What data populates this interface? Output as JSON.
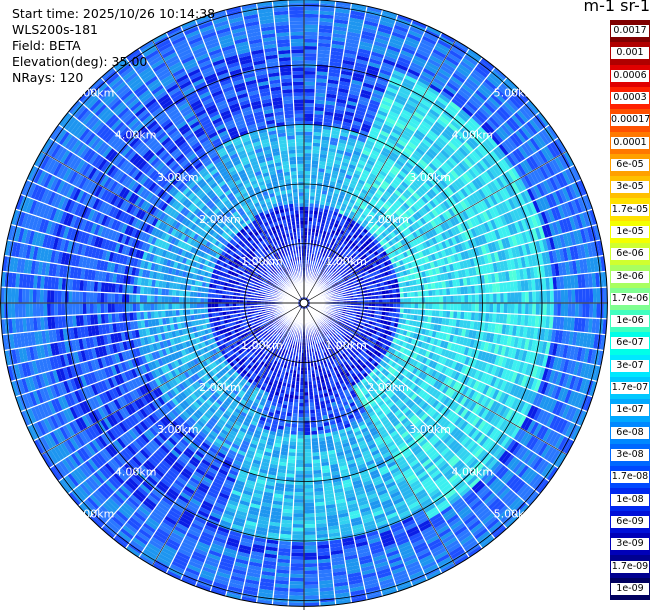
{
  "header": {
    "start_time": "Start time: 2025/10/26 10:14:38",
    "instrument": "WLS200s-181",
    "field": "Field: BETA",
    "elevation": "Elevation(deg): 35.00",
    "nrays": "NRays: 120"
  },
  "chart_data": {
    "type": "heatmap",
    "projection": "polar-ppi",
    "field": "BETA",
    "elevation_deg": 35.0,
    "n_rays": 120,
    "range_rings_km": [
      1,
      2,
      3,
      4,
      5
    ],
    "max_range_km": 5.1,
    "range_labels": [
      {
        "text": "1.00km",
        "km": 1,
        "quadrant": "NW"
      },
      {
        "text": "1.00km",
        "km": 1,
        "quadrant": "NE"
      },
      {
        "text": "1.00km",
        "km": 1,
        "quadrant": "SW"
      },
      {
        "text": "1.00km",
        "km": 1,
        "quadrant": "SE"
      },
      {
        "text": "2.00km",
        "km": 2,
        "quadrant": "NW"
      },
      {
        "text": "2.00km",
        "km": 2,
        "quadrant": "NE"
      },
      {
        "text": "2.00km",
        "km": 2,
        "quadrant": "SW"
      },
      {
        "text": "2.00km",
        "km": 2,
        "quadrant": "SE"
      },
      {
        "text": "3.00km",
        "km": 3,
        "quadrant": "NW"
      },
      {
        "text": "3.00km",
        "km": 3,
        "quadrant": "NE"
      },
      {
        "text": "3.00km",
        "km": 3,
        "quadrant": "SW"
      },
      {
        "text": "3.00km",
        "km": 3,
        "quadrant": "SE"
      },
      {
        "text": "4.00km",
        "km": 4,
        "quadrant": "NW"
      },
      {
        "text": "4.00km",
        "km": 4,
        "quadrant": "NE"
      },
      {
        "text": "4.00km",
        "km": 4,
        "quadrant": "SW"
      },
      {
        "text": "4.00km",
        "km": 4,
        "quadrant": "SE"
      },
      {
        "text": "5.00km",
        "km": 5,
        "quadrant": "NW"
      },
      {
        "text": "5.00km",
        "km": 5,
        "quadrant": "NE"
      },
      {
        "text": "5.00km",
        "km": 5,
        "quadrant": "SW"
      },
      {
        "text": "5.00km",
        "km": 5,
        "quadrant": "SE"
      }
    ],
    "colorbar": {
      "unit_label": "m-1 sr-1",
      "ticks": [
        "0.0017",
        "0.001",
        "0.0006",
        "0.0003",
        "0.00017",
        "0.0001",
        "6e-05",
        "3e-05",
        "1.7e-05",
        "1e-05",
        "6e-06",
        "3e-06",
        "1.7e-06",
        "1e-06",
        "6e-07",
        "3e-07",
        "1.7e-07",
        "1e-07",
        "6e-08",
        "3e-08",
        "1.7e-08",
        "1e-08",
        "6e-09",
        "3e-09",
        "1.7e-09",
        "1e-09"
      ],
      "colors": [
        "#800000",
        "#b00000",
        "#e00000",
        "#ff2000",
        "#ff5000",
        "#ff7800",
        "#ffa000",
        "#ffc000",
        "#ffe000",
        "#f4ff00",
        "#d0ff30",
        "#a8ff60",
        "#80ff90",
        "#40ffc0",
        "#00ffe8",
        "#00e8ff",
        "#00c8ff",
        "#00a8ff",
        "#0088ff",
        "#0068ff",
        "#0048ff",
        "#0028f0",
        "#0010d8",
        "#0000b8",
        "#000090",
        "#000060"
      ]
    }
  }
}
